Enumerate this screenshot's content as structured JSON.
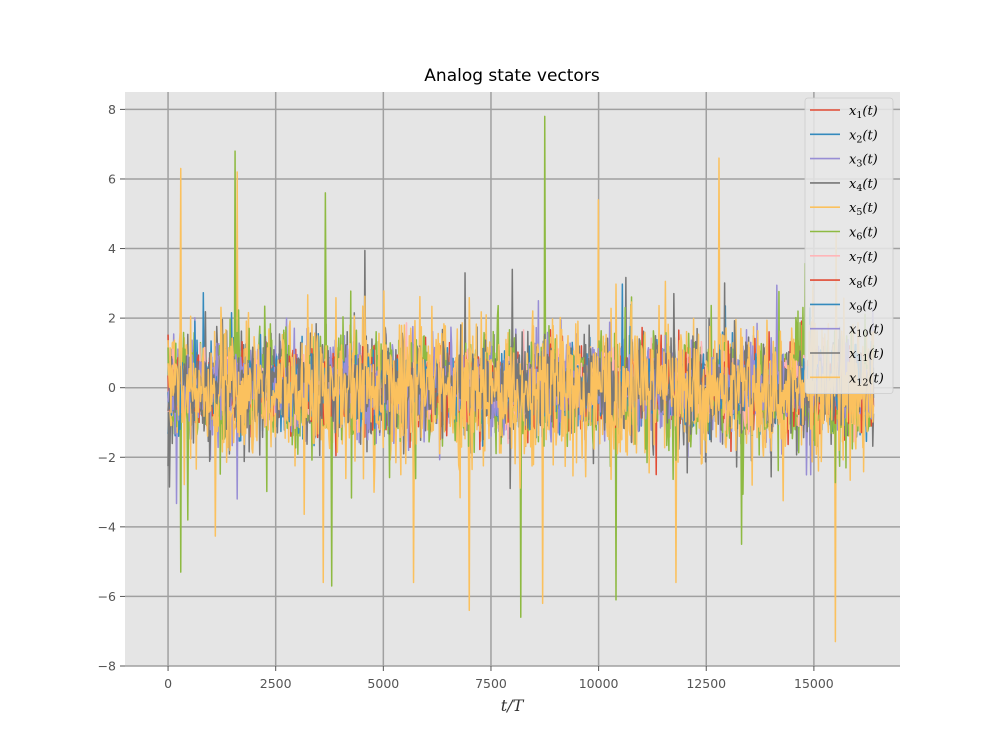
{
  "chart_data": {
    "type": "line",
    "title": "Analog state vectors",
    "xlabel": "t/T",
    "ylabel": "",
    "xlim": [
      -1000,
      17000
    ],
    "ylim": [
      -8,
      8.5
    ],
    "xticks": [
      0,
      2500,
      5000,
      7500,
      10000,
      12500,
      15000
    ],
    "xtick_labels": [
      "0",
      "2500",
      "5000",
      "7500",
      "10000",
      "12500",
      "15000"
    ],
    "yticks": [
      -8,
      -6,
      -4,
      -2,
      0,
      2,
      4,
      6,
      8
    ],
    "ytick_labels": [
      "−8",
      "−6",
      "−4",
      "−2",
      "0",
      "2",
      "4",
      "6",
      "8"
    ],
    "grid": true,
    "legend_position": "upper-right",
    "x_range": [
      0,
      16384
    ],
    "series": [
      {
        "name": "x1(t)",
        "base": "x",
        "sub": "1",
        "color": "#E24A33",
        "std": 0.55,
        "peaks": []
      },
      {
        "name": "x2(t)",
        "base": "x",
        "sub": "2",
        "color": "#348ABD",
        "std": 0.6,
        "peaks": []
      },
      {
        "name": "x3(t)",
        "base": "x",
        "sub": "3",
        "color": "#988ED5",
        "std": 0.7,
        "peaks": [
          [
            8600,
            2.5
          ],
          [
            1600,
            -3.2
          ]
        ]
      },
      {
        "name": "x4(t)",
        "base": "x",
        "sub": "4",
        "color": "#777777",
        "std": 0.75,
        "peaks": [
          [
            6900,
            3.3
          ],
          [
            8000,
            3.4
          ]
        ]
      },
      {
        "name": "x5(t)",
        "base": "x",
        "sub": "5",
        "color": "#FBC15E",
        "std": 0.9,
        "peaks": [
          [
            300,
            6.3
          ],
          [
            1600,
            6.2
          ],
          [
            12800,
            6.6
          ],
          [
            10000,
            5.4
          ],
          [
            8700,
            -6.2
          ],
          [
            7000,
            -6.4
          ],
          [
            15500,
            -7.3
          ],
          [
            3600,
            -5.6
          ],
          [
            11800,
            -5.6
          ],
          [
            5700,
            -5.6
          ]
        ]
      },
      {
        "name": "x6(t)",
        "base": "x",
        "sub": "6",
        "color": "#8EBA42",
        "std": 0.85,
        "peaks": [
          [
            8750,
            7.8
          ],
          [
            1550,
            6.8
          ],
          [
            3650,
            5.6
          ],
          [
            300,
            -5.3
          ],
          [
            3800,
            -5.7
          ],
          [
            8200,
            -6.6
          ],
          [
            10400,
            -6.1
          ]
        ]
      },
      {
        "name": "x7(t)",
        "base": "x",
        "sub": "7",
        "color": "#FFB5B8",
        "std": 0.5,
        "peaks": []
      },
      {
        "name": "x8(t)",
        "base": "x",
        "sub": "8",
        "color": "#E24A33",
        "std": 0.5,
        "peaks": []
      },
      {
        "name": "x9(t)",
        "base": "x",
        "sub": "9",
        "color": "#348ABD",
        "std": 0.5,
        "peaks": []
      },
      {
        "name": "x10(t)",
        "base": "x",
        "sub": "10",
        "color": "#988ED5",
        "std": 0.55,
        "peaks": []
      },
      {
        "name": "x11(t)",
        "base": "x",
        "sub": "11",
        "color": "#777777",
        "std": 0.6,
        "peaks": []
      },
      {
        "name": "x12(t)",
        "base": "x",
        "sub": "12",
        "color": "#FBC15E",
        "std": 0.95,
        "peaks": []
      }
    ]
  }
}
